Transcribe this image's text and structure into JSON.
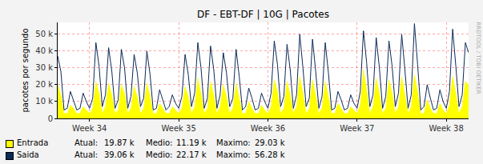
{
  "chart_data": {
    "type": "line",
    "title": "DF - EBT-DF | 10G | Pacotes",
    "y_label": "pacotes por segundo",
    "annotations": [
      {
        "text": "RRDTOOL / TOBI OETIKER"
      }
    ],
    "x": [
      -2.5,
      -2.25,
      -2,
      -1.75,
      -1.5,
      -1.25,
      -1,
      -0.75,
      -0.5,
      -0.25,
      0,
      0.25,
      0.5,
      0.75,
      1,
      1.25,
      1.5,
      1.75,
      2,
      2.25,
      2.5,
      2.75,
      3,
      3.25,
      3.5,
      3.75,
      4,
      4.25,
      4.5,
      4.75,
      5,
      5.25,
      5.5,
      5.75,
      6,
      6.25,
      6.5,
      6.75,
      7,
      7.25,
      7.5,
      7.75,
      8,
      8.25,
      8.5,
      8.75,
      9,
      9.25,
      9.5,
      9.75,
      10,
      10.25,
      10.5,
      10.75,
      11,
      11.25,
      11.5,
      11.75,
      12,
      12.25,
      12.5,
      12.75,
      13,
      13.25,
      13.5,
      13.75,
      14,
      14.25,
      14.5,
      14.75,
      15,
      15.25,
      15.5,
      15.75,
      16,
      16.25,
      16.5,
      16.75,
      17,
      17.25,
      17.5,
      17.75,
      18,
      18.25,
      18.5,
      18.75,
      19,
      19.25,
      19.5,
      19.75,
      20,
      20.25,
      20.5,
      20.75,
      21,
      21.25,
      21.5,
      21.75,
      22,
      22.25,
      22.5,
      22.75,
      23,
      23.25,
      23.5,
      23.75,
      24,
      24.25,
      24.5,
      24.75,
      25,
      25.25,
      25.5,
      25.75,
      26,
      26.25,
      26.5,
      26.75,
      27,
      27.25,
      27.5,
      27.75,
      28,
      28.25,
      28.5,
      28.75,
      29,
      29.25,
      29.5,
      29.75
    ],
    "series": [
      {
        "name": "Entrada",
        "type": "area",
        "color": "#ffff00",
        "stats": [
          {
            "label": "Atual:",
            "value": "19.87 k"
          },
          {
            "label": "Medio:",
            "value": "11.19 k"
          },
          {
            "label": "Maximo:",
            "value": "29.03 k"
          }
        ],
        "values": [
          20000,
          14000,
          3000,
          3000,
          8000,
          6000,
          3000,
          3000,
          7000,
          5000,
          3000,
          6000,
          22000,
          15000,
          3000,
          7000,
          21000,
          14000,
          3000,
          5000,
          20000,
          15000,
          3000,
          6000,
          19000,
          13000,
          3000,
          6000,
          21000,
          13000,
          3000,
          3000,
          9000,
          6000,
          3000,
          3000,
          7000,
          5000,
          3000,
          6000,
          19000,
          13000,
          3000,
          7000,
          24000,
          15000,
          3000,
          6000,
          22000,
          14000,
          3000,
          7000,
          20000,
          13000,
          3000,
          6000,
          21000,
          12000,
          3000,
          3000,
          10000,
          6000,
          3000,
          3000,
          8000,
          5000,
          3000,
          7000,
          23000,
          16000,
          3000,
          6000,
          22000,
          14000,
          3000,
          7000,
          25000,
          15000,
          3000,
          6000,
          23000,
          14000,
          3000,
          6000,
          22000,
          13000,
          3000,
          3000,
          9000,
          6000,
          3000,
          3000,
          7000,
          5000,
          3000,
          8000,
          29030,
          17000,
          3000,
          7000,
          24000,
          15000,
          3000,
          6000,
          23000,
          15000,
          3000,
          7000,
          25000,
          14000,
          3000,
          7000,
          26000,
          16000,
          3000,
          3000,
          11000,
          6000,
          3000,
          3000,
          9000,
          5000,
          3000,
          8000,
          25000,
          15000,
          3000,
          7000,
          22000,
          19870
        ]
      },
      {
        "name": "Saida",
        "type": "line",
        "color": "#0b2a58",
        "stats": [
          {
            "label": "Atual:",
            "value": "39.06 k"
          },
          {
            "label": "Medio:",
            "value": "22.17 k"
          },
          {
            "label": "Maximo:",
            "value": "56.28 k"
          }
        ],
        "values": [
          37000,
          28000,
          5000,
          6000,
          16000,
          11000,
          5000,
          6000,
          15000,
          10000,
          6000,
          12000,
          45000,
          31000,
          7000,
          14000,
          42000,
          28000,
          6000,
          11000,
          41000,
          30000,
          6000,
          13000,
          38000,
          27000,
          7000,
          12000,
          40000,
          26000,
          5000,
          6000,
          17000,
          11000,
          5000,
          7000,
          14000,
          9000,
          6000,
          13000,
          38000,
          26000,
          7000,
          15000,
          45000,
          30000,
          6000,
          12000,
          43000,
          29000,
          6000,
          14000,
          39000,
          27000,
          7000,
          12000,
          41000,
          25000,
          5000,
          7000,
          18000,
          12000,
          5000,
          6000,
          15000,
          10000,
          6000,
          15000,
          46000,
          32000,
          7000,
          13000,
          44000,
          29000,
          6000,
          14000,
          50000,
          30000,
          7000,
          12000,
          47000,
          28000,
          6000,
          13000,
          45000,
          27000,
          5000,
          6000,
          16000,
          11000,
          5000,
          6000,
          14000,
          9000,
          6000,
          16000,
          52000,
          33000,
          7000,
          14000,
          48000,
          30000,
          6000,
          13000,
          46000,
          31000,
          7000,
          15000,
          50000,
          29000,
          6000,
          14000,
          56280,
          32000,
          5000,
          7000,
          20000,
          12000,
          5000,
          6000,
          17000,
          10000,
          6000,
          16000,
          53000,
          31000,
          7000,
          14000,
          45000,
          39060
        ]
      }
    ],
    "xlim": [
      -2.5,
      29.75
    ],
    "xticks": [
      {
        "value": 0,
        "label": "Week 34"
      },
      {
        "value": 7,
        "label": "Week 35"
      },
      {
        "value": 14,
        "label": "Week 36"
      },
      {
        "value": 21,
        "label": "Week 37"
      },
      {
        "value": 28,
        "label": "Week 38"
      }
    ],
    "ylim": [
      0,
      57000
    ],
    "yticks": [
      0,
      {
        "value": 10000,
        "label": "10 k"
      },
      {
        "value": 20000,
        "label": "20 k"
      },
      {
        "value": 30000,
        "label": "30 k"
      },
      {
        "value": 40000,
        "label": "40 k"
      },
      {
        "value": 50000,
        "label": "50 k"
      }
    ],
    "grid": true
  }
}
